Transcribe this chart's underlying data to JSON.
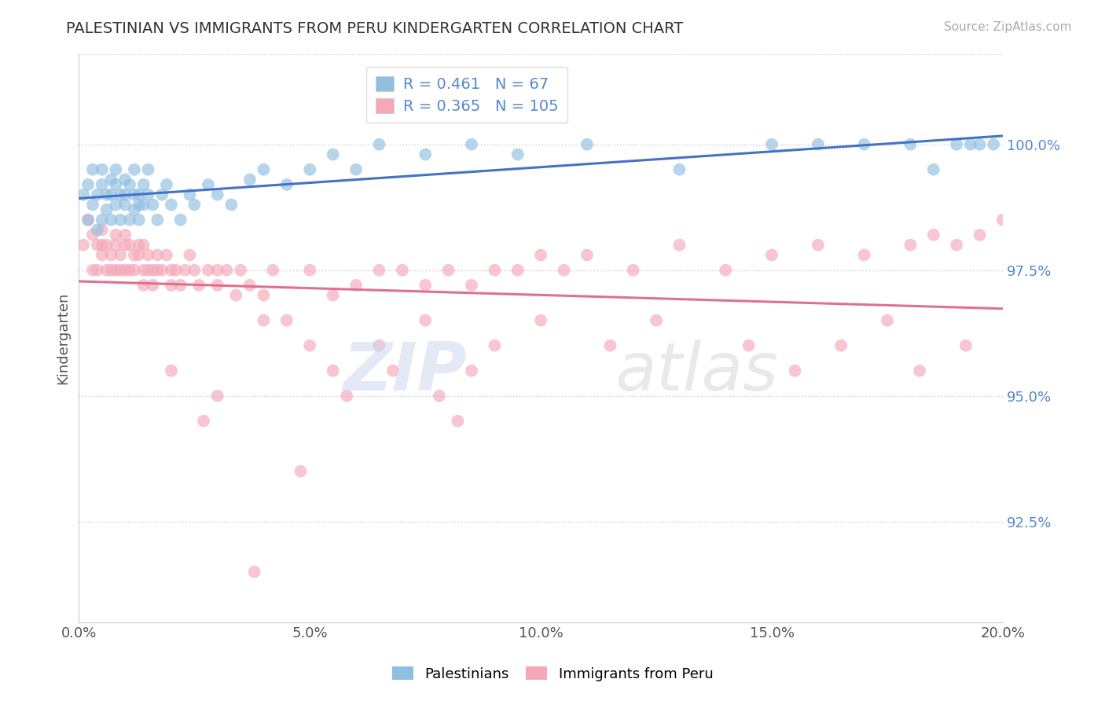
{
  "title": "PALESTINIAN VS IMMIGRANTS FROM PERU KINDERGARTEN CORRELATION CHART",
  "source": "Source: ZipAtlas.com",
  "xlabel": "",
  "ylabel": "Kindergarten",
  "xlim": [
    0.0,
    20.0
  ],
  "ylim": [
    90.5,
    101.8
  ],
  "yticks": [
    92.5,
    95.0,
    97.5,
    100.0
  ],
  "ytick_labels": [
    "92.5%",
    "95.0%",
    "97.5%",
    "100.0%"
  ],
  "xticks": [
    0.0,
    5.0,
    10.0,
    15.0,
    20.0
  ],
  "xtick_labels": [
    "0.0%",
    "5.0%",
    "10.0%",
    "15.0%",
    "20.0%"
  ],
  "blue_R": 0.461,
  "blue_N": 67,
  "pink_R": 0.365,
  "pink_N": 105,
  "blue_color": "#90bfe0",
  "pink_color": "#f4a8b8",
  "blue_line_color": "#4472c4",
  "pink_line_color": "#e07090",
  "legend_label_blue": "Palestinians",
  "legend_label_pink": "Immigrants from Peru",
  "blue_scatter_x": [
    0.1,
    0.2,
    0.2,
    0.3,
    0.3,
    0.4,
    0.4,
    0.5,
    0.5,
    0.5,
    0.6,
    0.6,
    0.7,
    0.7,
    0.7,
    0.8,
    0.8,
    0.8,
    0.9,
    0.9,
    1.0,
    1.0,
    1.0,
    1.1,
    1.1,
    1.2,
    1.2,
    1.2,
    1.3,
    1.3,
    1.3,
    1.4,
    1.4,
    1.5,
    1.5,
    1.6,
    1.7,
    1.8,
    1.9,
    2.0,
    2.2,
    2.4,
    2.5,
    2.8,
    3.0,
    3.3,
    3.7,
    4.0,
    4.5,
    5.0,
    5.5,
    6.0,
    6.5,
    7.5,
    8.5,
    9.5,
    11.0,
    13.0,
    15.0,
    16.0,
    17.0,
    18.0,
    18.5,
    19.0,
    19.3,
    19.5,
    19.8
  ],
  "blue_scatter_y": [
    99.0,
    99.2,
    98.5,
    99.5,
    98.8,
    99.0,
    98.3,
    99.2,
    98.5,
    99.5,
    99.0,
    98.7,
    99.3,
    98.5,
    99.0,
    99.2,
    98.8,
    99.5,
    98.5,
    99.0,
    99.3,
    98.8,
    99.0,
    98.5,
    99.2,
    99.0,
    98.7,
    99.5,
    98.8,
    99.0,
    98.5,
    99.2,
    98.8,
    99.0,
    99.5,
    98.8,
    98.5,
    99.0,
    99.2,
    98.8,
    98.5,
    99.0,
    98.8,
    99.2,
    99.0,
    98.8,
    99.3,
    99.5,
    99.2,
    99.5,
    99.8,
    99.5,
    100.0,
    99.8,
    100.0,
    99.8,
    100.0,
    99.5,
    100.0,
    100.0,
    100.0,
    100.0,
    99.5,
    100.0,
    100.0,
    100.0,
    100.0
  ],
  "pink_scatter_x": [
    0.1,
    0.2,
    0.3,
    0.3,
    0.4,
    0.4,
    0.5,
    0.5,
    0.5,
    0.6,
    0.6,
    0.7,
    0.7,
    0.8,
    0.8,
    0.8,
    0.9,
    0.9,
    1.0,
    1.0,
    1.0,
    1.1,
    1.1,
    1.2,
    1.2,
    1.3,
    1.3,
    1.4,
    1.4,
    1.4,
    1.5,
    1.5,
    1.6,
    1.6,
    1.7,
    1.7,
    1.8,
    1.9,
    2.0,
    2.0,
    2.1,
    2.2,
    2.3,
    2.4,
    2.5,
    2.6,
    2.8,
    3.0,
    3.0,
    3.2,
    3.4,
    3.5,
    3.7,
    4.0,
    4.2,
    4.5,
    5.0,
    5.0,
    5.5,
    6.0,
    6.5,
    7.0,
    7.5,
    8.0,
    8.5,
    9.0,
    9.5,
    10.0,
    10.5,
    11.0,
    12.0,
    13.0,
    14.0,
    15.0,
    16.0,
    17.0,
    18.0,
    18.5,
    19.0,
    19.5,
    20.0,
    2.0,
    3.0,
    4.0,
    5.5,
    6.5,
    7.5,
    8.5,
    9.0,
    10.0,
    11.5,
    12.5,
    14.5,
    15.5,
    16.5,
    17.5,
    18.2,
    19.2,
    4.8,
    3.8,
    2.7,
    5.8,
    6.8,
    7.8,
    8.2
  ],
  "pink_scatter_y": [
    98.0,
    98.5,
    97.5,
    98.2,
    98.0,
    97.5,
    98.0,
    97.8,
    98.3,
    97.5,
    98.0,
    97.8,
    97.5,
    98.0,
    97.5,
    98.2,
    97.8,
    97.5,
    98.0,
    97.5,
    98.2,
    97.5,
    98.0,
    97.8,
    97.5,
    98.0,
    97.8,
    97.5,
    98.0,
    97.2,
    97.5,
    97.8,
    97.5,
    97.2,
    97.5,
    97.8,
    97.5,
    97.8,
    97.5,
    97.2,
    97.5,
    97.2,
    97.5,
    97.8,
    97.5,
    97.2,
    97.5,
    97.5,
    97.2,
    97.5,
    97.0,
    97.5,
    97.2,
    97.0,
    97.5,
    96.5,
    97.5,
    96.0,
    97.0,
    97.2,
    97.5,
    97.5,
    97.2,
    97.5,
    97.2,
    97.5,
    97.5,
    97.8,
    97.5,
    97.8,
    97.5,
    98.0,
    97.5,
    97.8,
    98.0,
    97.8,
    98.0,
    98.2,
    98.0,
    98.2,
    98.5,
    95.5,
    95.0,
    96.5,
    95.5,
    96.0,
    96.5,
    95.5,
    96.0,
    96.5,
    96.0,
    96.5,
    96.0,
    95.5,
    96.0,
    96.5,
    95.5,
    96.0,
    93.5,
    91.5,
    94.5,
    95.0,
    95.5,
    95.0,
    94.5
  ]
}
